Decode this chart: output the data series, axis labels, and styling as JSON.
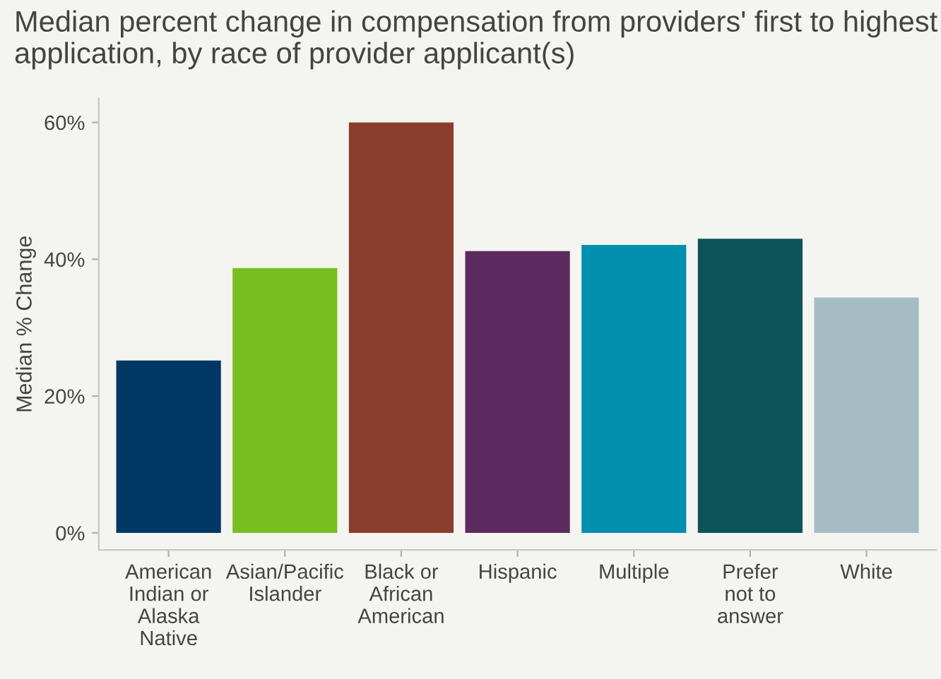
{
  "chart_data": {
    "type": "bar",
    "title": "Median percent change in compensation from providers' first to highest application, by race of provider applicant(s)",
    "ylabel": "Median % Change",
    "categories": [
      "American\nIndian or\nAlaska\nNative",
      "Asian/Pacific\nIslander",
      "Black or\nAfrican\nAmerican",
      "Hispanic",
      "Multiple",
      "Prefer\nnot to\nanswer",
      "White"
    ],
    "values": [
      25.2,
      38.7,
      60.0,
      41.2,
      42.1,
      43.0,
      34.4
    ],
    "colors": [
      "#003764",
      "#78be21",
      "#8b3d2e",
      "#5c2a5e",
      "#008fae",
      "#0d535a",
      "#a6bcc4"
    ],
    "ylim": [
      -2.5,
      63.5
    ],
    "yticks": [
      {
        "value": 0,
        "label": "0%"
      },
      {
        "value": 20,
        "label": "20%"
      },
      {
        "value": 40,
        "label": "40%"
      },
      {
        "value": 60,
        "label": "60%"
      }
    ],
    "grid": false,
    "legend": false
  }
}
